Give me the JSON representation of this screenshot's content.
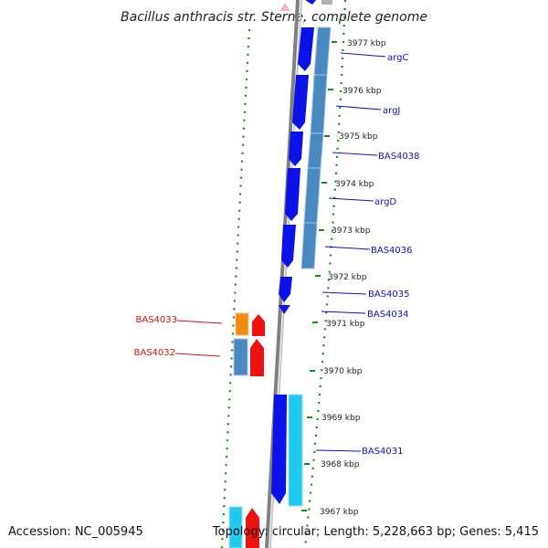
{
  "map": {
    "title": "Bacillus anthracis str. Sterne, complete genome",
    "accession_text": "Accession: NC_005945",
    "topology_text": "Topology: circular; Length: 5,228,663 bp; Genes: 5,415"
  },
  "ticks": [
    "3977 kbp",
    "3976 kbp",
    "3975 kbp",
    "3974 kbp",
    "3973 kbp",
    "3972 kbp",
    "3971 kbp",
    "3970 kbp",
    "3969 kbp",
    "3968 kbp",
    "3967 kbp"
  ],
  "right_labels": [
    "argC",
    "argJ",
    "BAS4038",
    "argD",
    "BAS4036",
    "BAS4035",
    "BAS4034",
    "BAS4031"
  ],
  "left_labels": [
    "BAS4033",
    "BAS4032"
  ],
  "colors": {
    "forward_cds": "#0a12e8",
    "forward_gene": "#4a88c0",
    "cyan_gene": "#22c8ee",
    "reverse_cds": "#ee1111",
    "reverse_orange": "#f08a10",
    "backbone": "#808080",
    "ring_dash": "#1a8a1a",
    "right_label": "#1010c0",
    "left_label": "#d01010"
  }
}
